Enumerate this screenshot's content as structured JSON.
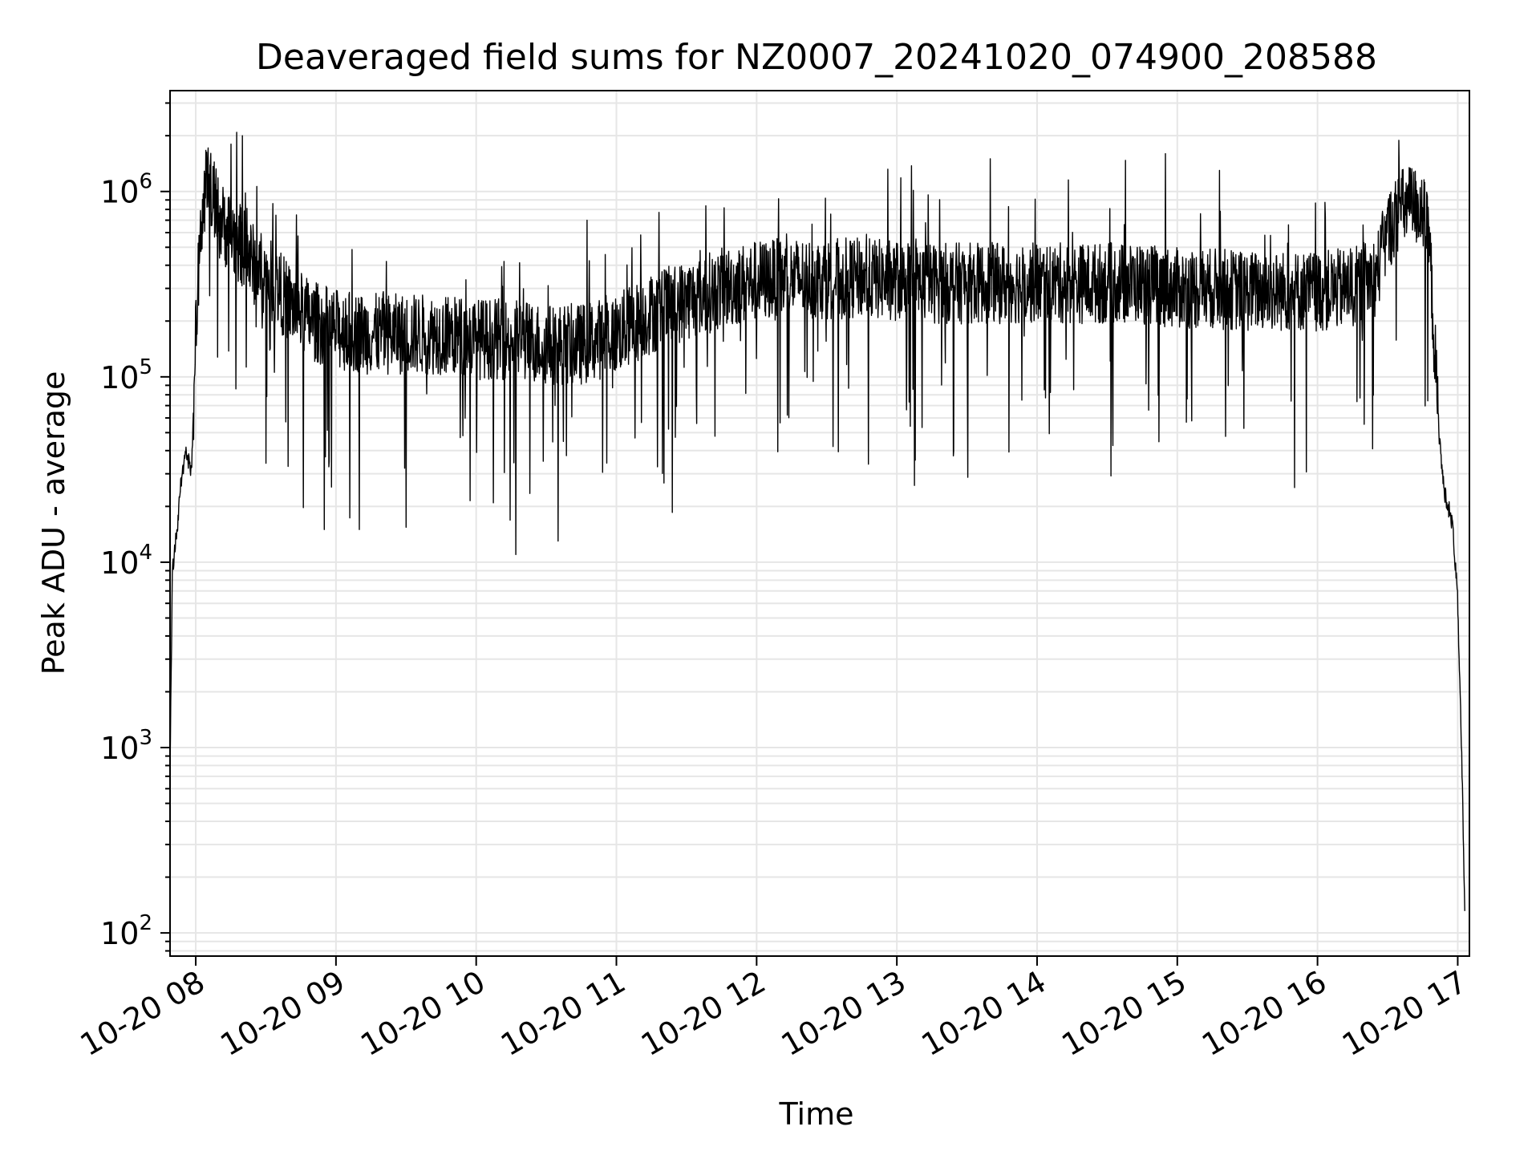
{
  "chart_data": {
    "type": "line",
    "title": "Deaveraged field sums for NZ0007_20241020_074900_208588",
    "xlabel": "Time",
    "ylabel": "Peak ADU - average",
    "y_scale": "log",
    "grid": true,
    "grid_color": "#e6e6e6",
    "line_color": "#000000",
    "xlim": [
      "2024-10-20T07:49:00",
      "2024-10-20T17:05:00"
    ],
    "ylim": [
      75,
      3500000
    ],
    "x_ticks": [
      "2024-10-20T08:00",
      "2024-10-20T09:00",
      "2024-10-20T10:00",
      "2024-10-20T11:00",
      "2024-10-20T12:00",
      "2024-10-20T13:00",
      "2024-10-20T14:00",
      "2024-10-20T15:00",
      "2024-10-20T16:00",
      "2024-10-20T17:00"
    ],
    "x_tick_labels": [
      "10-20 08",
      "10-20 09",
      "10-20 10",
      "10-20 11",
      "10-20 12",
      "10-20 13",
      "10-20 14",
      "10-20 15",
      "10-20 16",
      "10-20 17"
    ],
    "y_ticks": [
      100,
      1000,
      10000,
      100000,
      1000000
    ],
    "y_tick_labels": [
      {
        "base": "10",
        "exp": "2"
      },
      {
        "base": "10",
        "exp": "3"
      },
      {
        "base": "10",
        "exp": "4"
      },
      {
        "base": "10",
        "exp": "5"
      },
      {
        "base": "10",
        "exp": "6"
      }
    ],
    "series": [
      {
        "x": [
          "2024-10-20T07:49",
          "2024-10-20T07:50",
          "2024-10-20T07:52",
          "2024-10-20T07:54",
          "2024-10-20T07:56",
          "2024-10-20T07:58",
          "2024-10-20T07:59",
          "2024-10-20T08:00",
          "2024-10-20T08:02",
          "2024-10-20T08:04",
          "2024-10-20T08:06",
          "2024-10-20T08:08",
          "2024-10-20T08:10",
          "2024-10-20T08:15",
          "2024-10-20T08:20",
          "2024-10-20T08:25",
          "2024-10-20T08:30",
          "2024-10-20T08:35",
          "2024-10-20T08:40",
          "2024-10-20T08:50",
          "2024-10-20T09:00",
          "2024-10-20T09:15",
          "2024-10-20T09:30",
          "2024-10-20T09:45",
          "2024-10-20T10:00",
          "2024-10-20T10:15",
          "2024-10-20T10:30",
          "2024-10-20T10:45",
          "2024-10-20T11:00",
          "2024-10-20T11:15",
          "2024-10-20T11:30",
          "2024-10-20T11:45",
          "2024-10-20T12:00",
          "2024-10-20T12:15",
          "2024-10-20T12:30",
          "2024-10-20T12:45",
          "2024-10-20T13:00",
          "2024-10-20T13:15",
          "2024-10-20T13:30",
          "2024-10-20T13:45",
          "2024-10-20T14:00",
          "2024-10-20T14:15",
          "2024-10-20T14:30",
          "2024-10-20T14:45",
          "2024-10-20T15:00",
          "2024-10-20T15:15",
          "2024-10-20T15:30",
          "2024-10-20T15:45",
          "2024-10-20T16:00",
          "2024-10-20T16:15",
          "2024-10-20T16:25",
          "2024-10-20T16:30",
          "2024-10-20T16:35",
          "2024-10-20T16:40",
          "2024-10-20T16:45",
          "2024-10-20T16:48",
          "2024-10-20T16:50",
          "2024-10-20T16:52",
          "2024-10-20T16:54",
          "2024-10-20T16:56",
          "2024-10-20T16:58",
          "2024-10-20T17:00",
          "2024-10-20T17:02",
          "2024-10-20T17:03"
        ],
        "y": [
          800,
          9000,
          15000,
          30000,
          40000,
          30000,
          60000,
          200000,
          600000,
          1000000,
          1100000,
          900000,
          700000,
          600000,
          500000,
          400000,
          350000,
          300000,
          250000,
          200000,
          180000,
          170000,
          170000,
          170000,
          160000,
          160000,
          150000,
          150000,
          170000,
          220000,
          260000,
          300000,
          330000,
          340000,
          340000,
          340000,
          330000,
          320000,
          320000,
          320000,
          320000,
          320000,
          320000,
          320000,
          300000,
          300000,
          290000,
          290000,
          290000,
          300000,
          350000,
          600000,
          800000,
          850000,
          800000,
          500000,
          150000,
          50000,
          25000,
          20000,
          15000,
          6000,
          600,
          120
        ]
      }
    ],
    "notable_spikes": [
      {
        "x": "2024-10-20T08:20",
        "y": 2000000
      },
      {
        "x": "2024-10-20T08:15",
        "y": 1800000
      },
      {
        "x": "2024-10-20T13:40",
        "y": 1500000
      },
      {
        "x": "2024-10-20T14:55",
        "y": 1600000
      },
      {
        "x": "2024-10-20T15:18",
        "y": 1300000
      },
      {
        "x": "2024-10-20T16:35",
        "y": 1300000
      }
    ],
    "notable_dips": [
      {
        "x": "2024-10-20T08:55",
        "y": 15000
      },
      {
        "x": "2024-10-20T10:17",
        "y": 11000
      },
      {
        "x": "2024-10-20T10:35",
        "y": 13000
      },
      {
        "x": "2024-10-20T09:10",
        "y": 15000
      }
    ]
  }
}
